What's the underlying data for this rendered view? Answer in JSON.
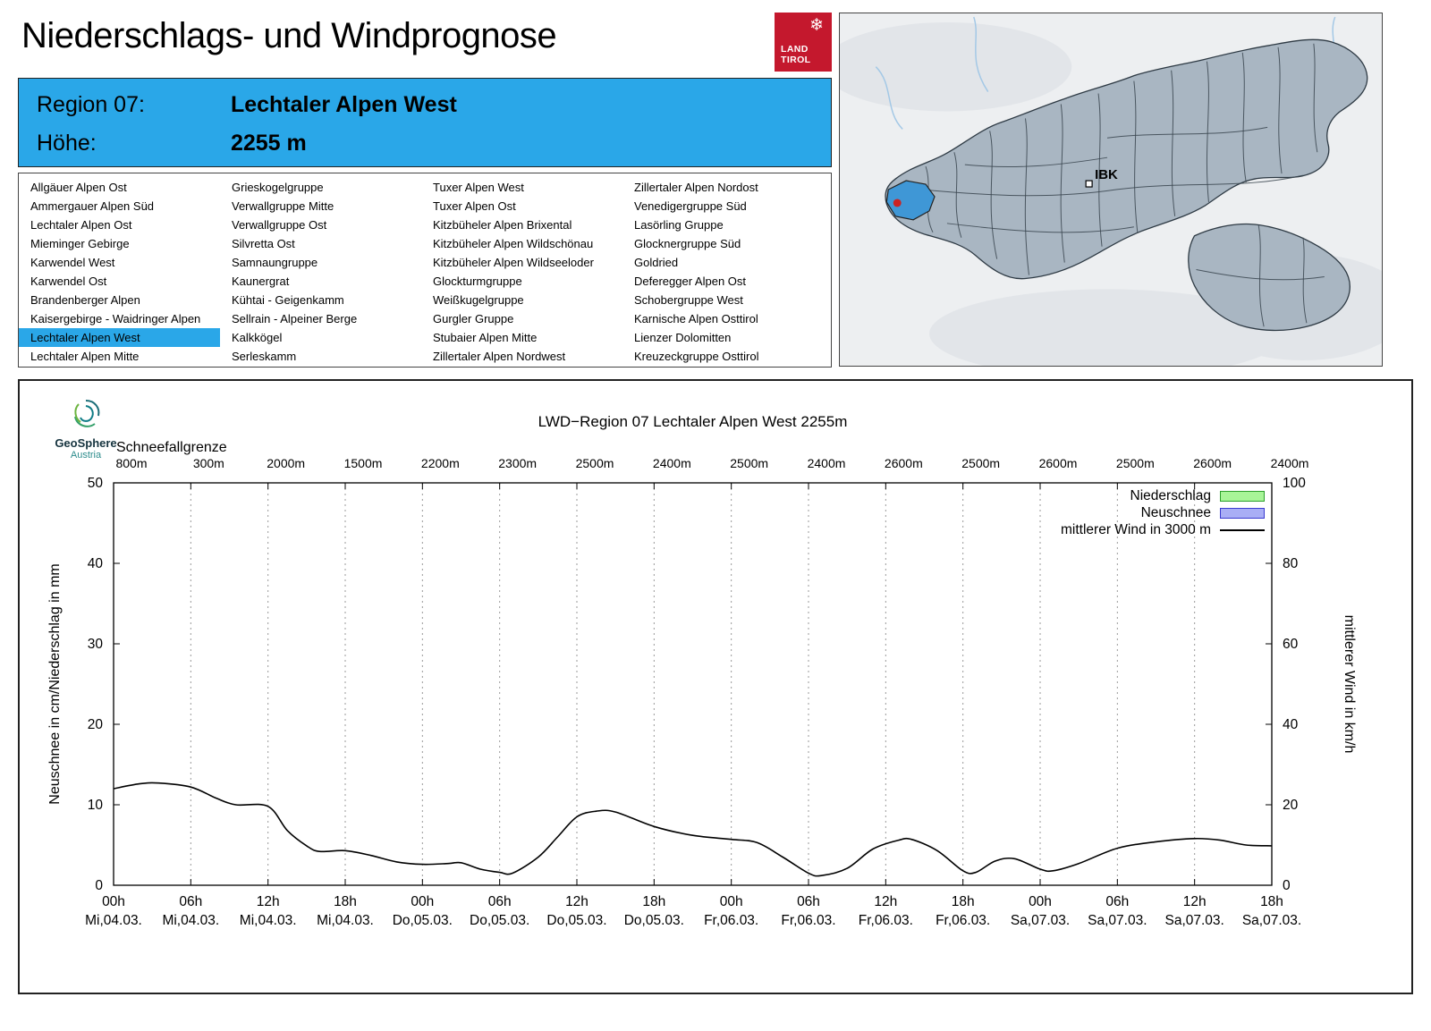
{
  "page": {
    "title": "Niederschlags- und Windprognose"
  },
  "land_tirol_logo": {
    "line1": "LAND",
    "line2": "TIROL",
    "snowflake": "❄",
    "bg": "#c4182d"
  },
  "map": {
    "city_label": "IBK"
  },
  "region_header": {
    "region_label": "Region 07:",
    "region_name": "Lechtaler Alpen West",
    "altitude_label": "Höhe:",
    "altitude_value": "2255 m",
    "bg": "#2aa7e8"
  },
  "region_list": {
    "selected": "Lechtaler Alpen West",
    "columns": [
      [
        "Allgäuer Alpen Ost",
        "Ammergauer Alpen Süd",
        "Lechtaler Alpen Ost",
        "Mieminger Gebirge",
        "Karwendel West",
        "Karwendel Ost",
        "Brandenberger Alpen",
        "Kaisergebirge - Waidringer Alpen",
        "Lechtaler Alpen West",
        "Lechtaler Alpen Mitte"
      ],
      [
        "Grieskogelgruppe",
        "Verwallgruppe Mitte",
        "Verwallgruppe Ost",
        "Silvretta Ost",
        "Samnaungruppe",
        "Kaunergrat",
        "Kühtai - Geigenkamm",
        "Sellrain - Alpeiner Berge",
        "Kalkkögel",
        "Serleskamm"
      ],
      [
        "Tuxer Alpen West",
        "Tuxer Alpen Ost",
        "Kitzbüheler Alpen Brixental",
        "Kitzbüheler Alpen Wildschönau",
        "Kitzbüheler Alpen Wildseeloder",
        "Glockturmgruppe",
        "Weißkugelgruppe",
        "Gurgler Gruppe",
        "Stubaier Alpen Mitte",
        "Zillertaler Alpen Nordwest"
      ],
      [
        "Zillertaler Alpen Nordost",
        "Venedigergruppe Süd",
        "Lasörling Gruppe",
        "Glocknergruppe Süd",
        "Goldried",
        "Deferegger Alpen Ost",
        "Schobergruppe West",
        "Karnische Alpen Osttirol",
        "Lienzer Dolomitten",
        "Kreuzeckgruppe Osttirol"
      ]
    ]
  },
  "provider": {
    "name": "GeoSphere",
    "sub": "Austria"
  },
  "chart_data": {
    "type": "line",
    "title": "LWD−Region 07 Lechtaler Alpen West 2255m",
    "snowline": {
      "label": "Schneefallgrenze",
      "values": [
        "800m",
        "300m",
        "2000m",
        "1500m",
        "2200m",
        "2300m",
        "2500m",
        "2400m",
        "2500m",
        "2400m",
        "2600m",
        "2500m",
        "2600m",
        "2500m",
        "2600m",
        "2400m"
      ]
    },
    "ylabel_left": "Neuschnee in cm/Niederschlag in mm",
    "ylabel_right": "mittlerer Wind in km/h",
    "ylim_left": [
      0,
      50
    ],
    "ylim_right": [
      0,
      100
    ],
    "y_ticks_left": [
      0,
      10,
      20,
      30,
      40,
      50
    ],
    "y_ticks_right": [
      0,
      20,
      40,
      60,
      80,
      100
    ],
    "x_unit": "hours from Mi 04.03. 00h",
    "x_ticks_hours": [
      0,
      6,
      12,
      18,
      24,
      30,
      36,
      42,
      48,
      54,
      60,
      66,
      72,
      78,
      84,
      90
    ],
    "x_tick_labels_time": [
      "00h",
      "06h",
      "12h",
      "18h",
      "00h",
      "06h",
      "12h",
      "18h",
      "00h",
      "06h",
      "12h",
      "18h",
      "00h",
      "06h",
      "12h",
      "18h"
    ],
    "x_tick_labels_date": [
      "Mi,04.03.",
      "Mi,04.03.",
      "Mi,04.03.",
      "Mi,04.03.",
      "Do,05.03.",
      "Do,05.03.",
      "Do,05.03.",
      "Do,05.03.",
      "Fr,06.03.",
      "Fr,06.03.",
      "Fr,06.03.",
      "Fr,06.03.",
      "Sa,07.03.",
      "Sa,07.03.",
      "Sa,07.03.",
      "Sa,07.03."
    ],
    "grid": "vertical dotted lines at 6h ticks",
    "legend_position": "top-right inside plot",
    "legend": [
      {
        "label": "Niederschlag",
        "type": "box",
        "fill": "#a8f598",
        "stroke": "#2ca02c"
      },
      {
        "label": "Neuschnee",
        "type": "box",
        "fill": "#a9aef5",
        "stroke": "#3a3ad0"
      },
      {
        "label": "mittlerer Wind in 3000 m",
        "type": "line",
        "stroke": "#000000"
      }
    ],
    "series": [
      {
        "name": "Niederschlag",
        "axis": "left",
        "unit": "mm",
        "values": [],
        "note": "no precipitation bars visible over whole period (≈0)"
      },
      {
        "name": "Neuschnee",
        "axis": "left",
        "unit": "cm",
        "values": [],
        "note": "no new-snow bars visible over whole period (≈0)"
      },
      {
        "name": "mittlerer Wind in 3000 m",
        "axis": "right",
        "unit": "km/h",
        "points": [
          [
            0,
            24
          ],
          [
            2,
            25.2
          ],
          [
            3.5,
            25.4
          ],
          [
            6,
            24.4
          ],
          [
            8,
            21.6
          ],
          [
            9.5,
            20
          ],
          [
            12,
            19.6
          ],
          [
            13.5,
            13.6
          ],
          [
            15,
            9.8
          ],
          [
            16,
            8.4
          ],
          [
            18,
            8.6
          ],
          [
            20,
            7.4
          ],
          [
            22,
            5.8
          ],
          [
            24,
            5.2
          ],
          [
            26,
            5.4
          ],
          [
            27,
            5.6
          ],
          [
            28.5,
            4
          ],
          [
            30,
            3.2
          ],
          [
            31,
            3
          ],
          [
            33,
            7
          ],
          [
            34.5,
            12
          ],
          [
            36,
            17
          ],
          [
            37.5,
            18.4
          ],
          [
            39,
            18.2
          ],
          [
            42,
            14.6
          ],
          [
            45,
            12.4
          ],
          [
            48,
            11.4
          ],
          [
            50,
            10.6
          ],
          [
            52,
            7
          ],
          [
            54,
            3
          ],
          [
            55,
            2.4
          ],
          [
            57,
            4.2
          ],
          [
            59,
            9
          ],
          [
            61,
            11.2
          ],
          [
            62,
            11.4
          ],
          [
            64,
            8.6
          ],
          [
            66,
            3.6
          ],
          [
            67,
            3.2
          ],
          [
            68.5,
            6
          ],
          [
            70,
            6.6
          ],
          [
            72,
            4
          ],
          [
            73,
            3.6
          ],
          [
            75,
            5.4
          ],
          [
            78,
            9.2
          ],
          [
            81,
            10.8
          ],
          [
            84,
            11.6
          ],
          [
            86,
            11.2
          ],
          [
            88,
            10
          ],
          [
            90,
            9.8
          ]
        ]
      }
    ]
  }
}
